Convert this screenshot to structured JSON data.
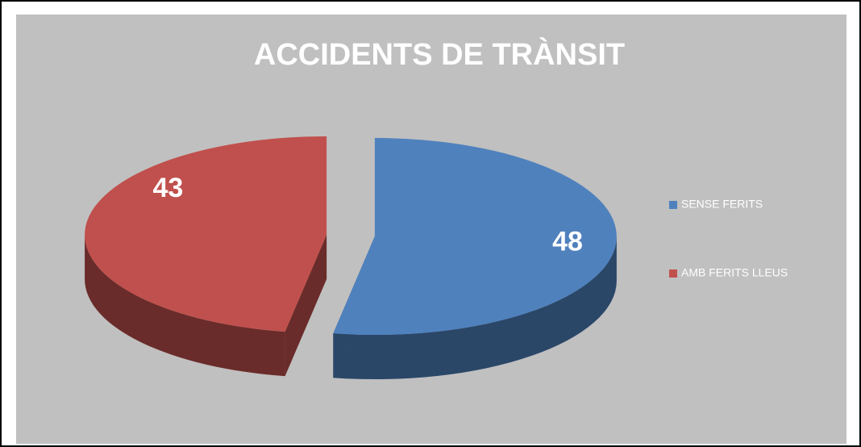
{
  "chart_data": {
    "type": "pie3d",
    "title": "ACCIDENTS DE TRÀNSIT",
    "categories": [
      "SENSE FERITS",
      "AMB FERITS LLEUS"
    ],
    "values": [
      48,
      43
    ],
    "colors": [
      "#4f81bd",
      "#c0504d"
    ],
    "legend": "right"
  }
}
